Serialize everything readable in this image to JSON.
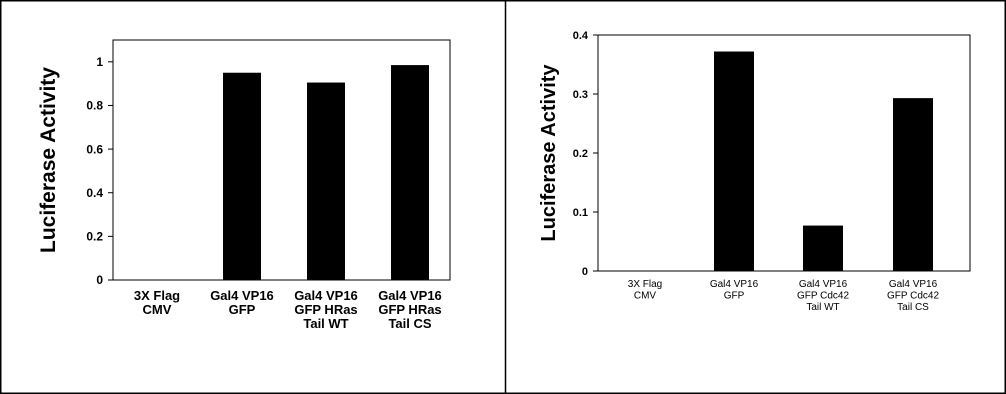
{
  "chart_data": [
    {
      "type": "bar",
      "ylabel": "Luciferase Activity",
      "ylim": [
        0,
        1.1
      ],
      "yticks": [
        "0",
        "0.2",
        "0.4",
        "0.6",
        "0.8",
        "1"
      ],
      "categories": [
        [
          "3X Flag",
          "CMV"
        ],
        [
          "Gal4 VP16",
          "GFP"
        ],
        [
          "Gal4 VP16",
          "GFP HRas",
          "Tail WT"
        ],
        [
          "Gal4 VP16",
          "GFP HRas",
          "Tail CS"
        ]
      ],
      "values": [
        0,
        0.95,
        0.905,
        0.985
      ],
      "bar_color": "#000000",
      "grid": false
    },
    {
      "type": "bar",
      "ylabel": "Luciferase Activity",
      "ylim": [
        0,
        0.4
      ],
      "yticks": [
        "0",
        "0.1",
        "0.2",
        "0.3",
        "0.4"
      ],
      "categories": [
        [
          "3X Flag",
          "CMV"
        ],
        [
          "Gal4 VP16",
          "GFP"
        ],
        [
          "Gal4 VP16",
          "GFP Cdc42",
          "Tail WT"
        ],
        [
          "Gal4 VP16",
          "GFP Cdc42",
          "Tail CS"
        ]
      ],
      "values": [
        0,
        0.372,
        0.077,
        0.293
      ],
      "bar_color": "#000000",
      "grid": false
    }
  ]
}
